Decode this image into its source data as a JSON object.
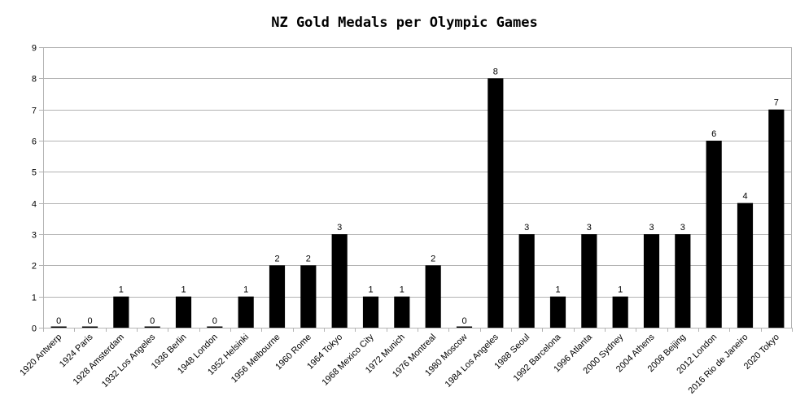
{
  "chart_data": {
    "type": "bar",
    "title": "NZ Gold Medals per Olympic Games",
    "xlabel": "",
    "ylabel": "",
    "ylim": [
      0,
      9
    ],
    "yticks": [
      0,
      1,
      2,
      3,
      4,
      5,
      6,
      7,
      8,
      9
    ],
    "grid": true,
    "legend": "none",
    "bar_color": "#000000",
    "categories": [
      "1920 Antwerp",
      "1924 Paris",
      "1928 Amsterdam",
      "1932 Los Angeles",
      "1936 Berlin",
      "1948 London",
      "1952 Helsinki",
      "1956 Melbourne",
      "1960 Rome",
      "1964 Tokyo",
      "1968 Mexico City",
      "1972 Munich",
      "1976 Montreal",
      "1980 Moscow",
      "1984 Los Angeles",
      "1988 Seoul",
      "1992 Barcelona",
      "1996 Atlanta",
      "2000 Sydney",
      "2004 Athens",
      "2008 Beijing",
      "2012 London",
      "2016 Rio de Janeiro",
      "2020 Tokyo"
    ],
    "values": [
      0,
      0,
      1,
      0,
      1,
      0,
      1,
      2,
      2,
      3,
      1,
      1,
      2,
      0,
      8,
      3,
      1,
      3,
      1,
      3,
      3,
      6,
      4,
      7
    ]
  }
}
